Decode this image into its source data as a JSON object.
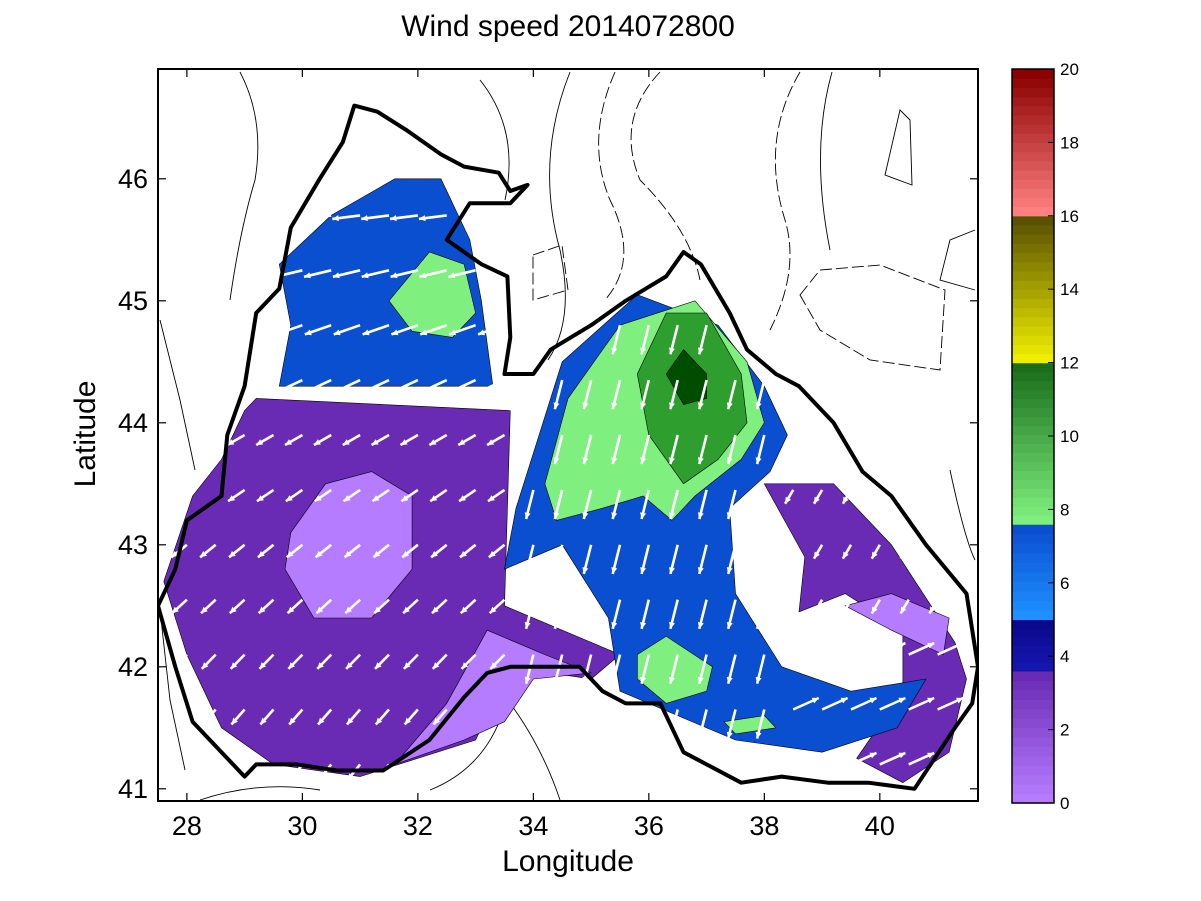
{
  "chart_data": {
    "type": "heatmap",
    "title": "Wind speed 2014072800",
    "xlabel": "Longitude",
    "ylabel": "Latitude",
    "xlim": [
      27.5,
      41.7
    ],
    "ylim": [
      40.9,
      46.9
    ],
    "xticks": [
      28,
      30,
      32,
      34,
      36,
      38,
      40
    ],
    "yticks": [
      41,
      42,
      43,
      44,
      45,
      46
    ],
    "colorbar": {
      "label_values": [
        0,
        2,
        4,
        6,
        8,
        10,
        12,
        14,
        16,
        18,
        20
      ],
      "range": [
        0,
        20
      ],
      "bands": [
        {
          "from": 0,
          "to": 3.6,
          "color": "#6a2bb4",
          "light": "#b57cff"
        },
        {
          "from": 3.6,
          "to": 5,
          "color": "#0a0a8c",
          "light": "#1515b0"
        },
        {
          "from": 5,
          "to": 7.6,
          "color": "#0a4fd0",
          "light": "#1e90ff"
        },
        {
          "from": 7.6,
          "to": 12,
          "color": "#1a6e1a",
          "light": "#7ff07f"
        },
        {
          "from": 12,
          "to": 16,
          "color": "#5a5200",
          "light": "#eeee00"
        },
        {
          "from": 16,
          "to": 20,
          "color": "#8b0000",
          "light": "#ff8080"
        }
      ]
    },
    "contour_regions": [
      {
        "speed": 3,
        "color": "#6a2bb4",
        "points": [
          [
            29.2,
            44.2
          ],
          [
            33.6,
            44.1
          ],
          [
            33.5,
            42.5
          ],
          [
            35.5,
            42.1
          ],
          [
            35.0,
            41.9
          ],
          [
            33.6,
            42.0
          ],
          [
            33.0,
            41.4
          ],
          [
            31.0,
            41.1
          ],
          [
            29.5,
            41.2
          ],
          [
            28.6,
            41.5
          ],
          [
            28.0,
            42.1
          ],
          [
            27.6,
            42.7
          ],
          [
            28.1,
            43.4
          ],
          [
            28.6,
            43.7
          ],
          [
            29.0,
            44.1
          ]
        ]
      },
      {
        "speed": 1,
        "color": "#b57cff",
        "points": [
          [
            29.8,
            43.1
          ],
          [
            30.4,
            43.5
          ],
          [
            31.2,
            43.6
          ],
          [
            31.9,
            43.4
          ],
          [
            31.9,
            42.8
          ],
          [
            31.2,
            42.4
          ],
          [
            30.2,
            42.4
          ],
          [
            29.7,
            42.8
          ]
        ]
      },
      {
        "speed": 1,
        "color": "#b57cff",
        "points": [
          [
            33.2,
            42.3
          ],
          [
            34.2,
            42.1
          ],
          [
            35.0,
            41.95
          ],
          [
            34.0,
            41.9
          ],
          [
            33.5,
            41.55
          ],
          [
            32.8,
            41.4
          ],
          [
            31.6,
            41.2
          ],
          [
            32.5,
            41.7
          ]
        ]
      },
      {
        "speed": 3,
        "color": "#6a2bb4",
        "points": [
          [
            38.0,
            43.5
          ],
          [
            39.2,
            43.5
          ],
          [
            40.2,
            43.0
          ],
          [
            41.3,
            42.2
          ],
          [
            41.5,
            41.9
          ],
          [
            41.2,
            41.3
          ],
          [
            40.4,
            41.05
          ],
          [
            39.6,
            41.25
          ],
          [
            40.4,
            41.8
          ],
          [
            40.4,
            42.3
          ],
          [
            39.4,
            42.6
          ],
          [
            38.6,
            42.45
          ],
          [
            38.7,
            42.9
          ]
        ]
      },
      {
        "speed": 1,
        "color": "#b57cff",
        "points": [
          [
            39.4,
            42.5
          ],
          [
            40.2,
            42.6
          ],
          [
            41.2,
            42.4
          ],
          [
            41.1,
            42.1
          ],
          [
            40.2,
            42.3
          ]
        ]
      },
      {
        "speed": 5.5,
        "color": "#0a4fd0",
        "points": [
          [
            29.6,
            45.3
          ],
          [
            30.5,
            45.7
          ],
          [
            31.6,
            46.0
          ],
          [
            32.4,
            46.0
          ],
          [
            32.9,
            45.5
          ],
          [
            33.1,
            45.0
          ],
          [
            33.3,
            44.3
          ],
          [
            31.0,
            44.3
          ],
          [
            29.6,
            44.3
          ],
          [
            29.8,
            44.8
          ]
        ]
      },
      {
        "speed": 8.5,
        "color": "#7ff07f",
        "points": [
          [
            31.5,
            45.0
          ],
          [
            32.2,
            45.4
          ],
          [
            32.8,
            45.3
          ],
          [
            33.0,
            44.9
          ],
          [
            32.6,
            44.7
          ],
          [
            31.9,
            44.75
          ]
        ]
      },
      {
        "speed": 5.5,
        "color": "#0a4fd0",
        "points": [
          [
            33.7,
            43.3
          ],
          [
            34.5,
            44.5
          ],
          [
            35.8,
            45.05
          ],
          [
            37.2,
            44.8
          ],
          [
            38.0,
            44.3
          ],
          [
            38.4,
            43.9
          ],
          [
            38.1,
            43.6
          ],
          [
            37.4,
            43.3
          ],
          [
            37.5,
            42.6
          ],
          [
            38.3,
            42.0
          ],
          [
            39.5,
            41.8
          ],
          [
            40.8,
            41.9
          ],
          [
            40.3,
            41.5
          ],
          [
            39.0,
            41.3
          ],
          [
            37.5,
            41.4
          ],
          [
            36.5,
            41.6
          ],
          [
            35.5,
            41.8
          ],
          [
            35.3,
            42.4
          ],
          [
            34.5,
            43.0
          ],
          [
            33.5,
            42.8
          ]
        ]
      },
      {
        "speed": 8.5,
        "color": "#7ff07f",
        "points": [
          [
            34.2,
            43.5
          ],
          [
            34.6,
            44.2
          ],
          [
            35.5,
            44.8
          ],
          [
            36.8,
            45.0
          ],
          [
            37.7,
            44.5
          ],
          [
            38.0,
            44.0
          ],
          [
            37.6,
            43.7
          ],
          [
            36.8,
            43.4
          ],
          [
            36.4,
            43.2
          ],
          [
            35.9,
            43.4
          ],
          [
            35.2,
            43.3
          ],
          [
            34.4,
            43.2
          ]
        ]
      },
      {
        "speed": 10,
        "color": "#2e9e2e",
        "points": [
          [
            35.8,
            44.4
          ],
          [
            36.3,
            44.9
          ],
          [
            37.0,
            44.9
          ],
          [
            37.6,
            44.4
          ],
          [
            37.7,
            44.0
          ],
          [
            37.2,
            43.7
          ],
          [
            36.6,
            43.5
          ],
          [
            36.0,
            43.9
          ]
        ]
      },
      {
        "speed": 12,
        "color": "#004d00",
        "points": [
          [
            36.3,
            44.4
          ],
          [
            36.6,
            44.6
          ],
          [
            37.0,
            44.4
          ],
          [
            37.0,
            44.2
          ],
          [
            36.6,
            44.15
          ]
        ]
      },
      {
        "speed": 8.5,
        "color": "#7ff07f",
        "points": [
          [
            35.8,
            42.1
          ],
          [
            36.3,
            42.25
          ],
          [
            37.1,
            42.0
          ],
          [
            37.0,
            41.8
          ],
          [
            36.3,
            41.7
          ],
          [
            35.8,
            41.9
          ]
        ]
      },
      {
        "speed": 8.5,
        "color": "#7ff07f",
        "points": [
          [
            37.3,
            41.55
          ],
          [
            38.0,
            41.6
          ],
          [
            38.2,
            41.5
          ],
          [
            37.5,
            41.45
          ]
        ]
      }
    ],
    "coastline": [
      [
        27.5,
        42.5
      ],
      [
        27.8,
        42.8
      ],
      [
        28.0,
        43.2
      ],
      [
        28.6,
        43.4
      ],
      [
        28.7,
        43.9
      ],
      [
        29.0,
        44.3
      ],
      [
        29.2,
        44.9
      ],
      [
        29.6,
        45.1
      ],
      [
        29.8,
        45.6
      ],
      [
        30.3,
        46.0
      ],
      [
        30.7,
        46.3
      ],
      [
        30.9,
        46.6
      ],
      [
        31.3,
        46.55
      ],
      [
        31.8,
        46.4
      ],
      [
        32.4,
        46.2
      ],
      [
        32.8,
        46.1
      ],
      [
        33.4,
        46.05
      ],
      [
        33.6,
        45.9
      ],
      [
        33.9,
        45.95
      ],
      [
        33.6,
        45.8
      ],
      [
        32.9,
        45.8
      ],
      [
        32.5,
        45.5
      ],
      [
        33.1,
        45.3
      ],
      [
        33.55,
        45.2
      ],
      [
        33.6,
        44.7
      ],
      [
        33.5,
        44.4
      ],
      [
        34.0,
        44.4
      ],
      [
        34.3,
        44.6
      ],
      [
        35.0,
        44.8
      ],
      [
        35.6,
        45.0
      ],
      [
        36.3,
        45.2
      ],
      [
        36.6,
        45.4
      ],
      [
        36.9,
        45.3
      ],
      [
        37.4,
        44.9
      ],
      [
        37.7,
        44.6
      ],
      [
        38.2,
        44.4
      ],
      [
        38.6,
        44.3
      ],
      [
        39.2,
        44.0
      ],
      [
        39.7,
        43.6
      ],
      [
        40.2,
        43.4
      ],
      [
        40.8,
        43.0
      ],
      [
        41.5,
        42.6
      ],
      [
        41.7,
        42.0
      ],
      [
        41.6,
        41.7
      ],
      [
        41.3,
        41.5
      ],
      [
        40.6,
        41.0
      ],
      [
        39.8,
        41.05
      ],
      [
        39.1,
        41.05
      ],
      [
        38.3,
        41.1
      ],
      [
        37.6,
        41.05
      ],
      [
        37.0,
        41.2
      ],
      [
        36.6,
        41.3
      ],
      [
        36.2,
        41.7
      ],
      [
        35.6,
        41.7
      ],
      [
        35.2,
        41.8
      ],
      [
        34.8,
        42.0
      ],
      [
        34.3,
        42.0
      ],
      [
        33.6,
        42.0
      ],
      [
        33.2,
        41.95
      ],
      [
        32.8,
        41.75
      ],
      [
        32.2,
        41.4
      ],
      [
        31.4,
        41.15
      ],
      [
        30.6,
        41.15
      ],
      [
        29.9,
        41.2
      ],
      [
        29.2,
        41.2
      ],
      [
        29.0,
        41.1
      ],
      [
        28.6,
        41.3
      ],
      [
        28.1,
        41.55
      ],
      [
        27.8,
        42.0
      ],
      [
        27.5,
        42.5
      ]
    ]
  }
}
